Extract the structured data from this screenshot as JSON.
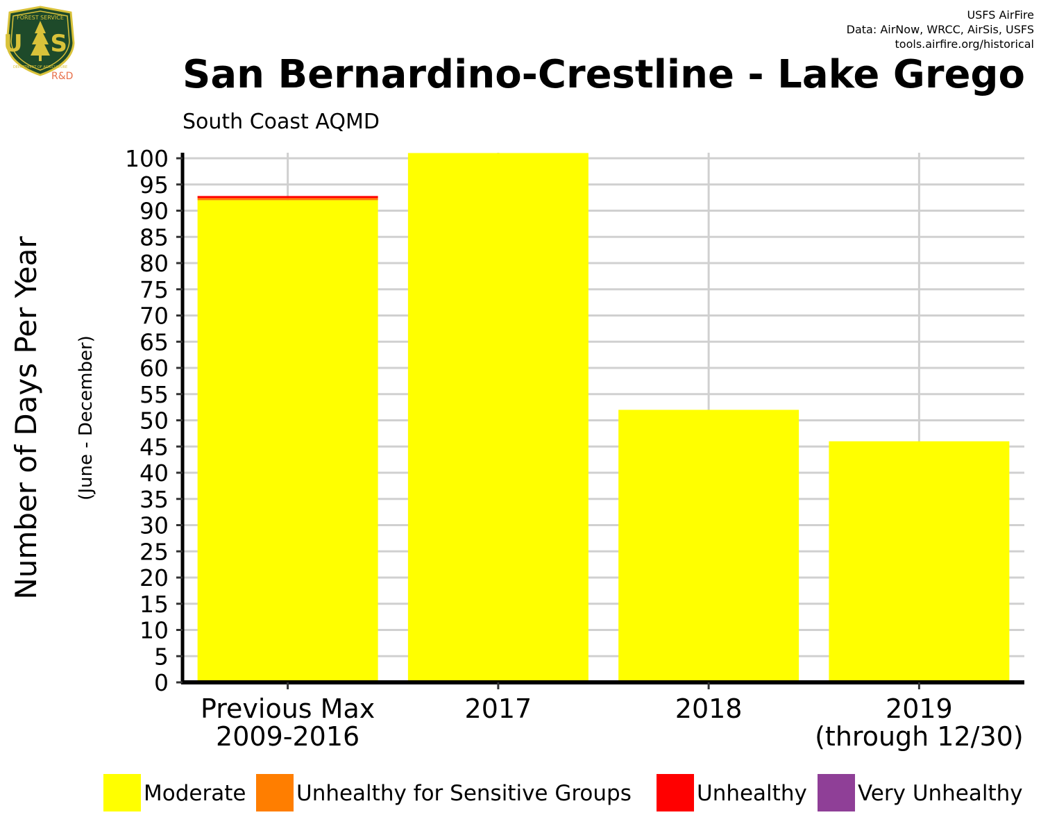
{
  "header": {
    "credit_lines": [
      "USFS AirFire",
      "Data: AirNow, WRCC, AirSis, USFS",
      "tools.airfire.org/historical"
    ],
    "logo": {
      "top_text": "FOREST SERVICE",
      "main_text": "U S",
      "bottom_text": "DEPARTMENT OF AGRICULTURE",
      "rd_text": "R&D"
    }
  },
  "chart_data": {
    "type": "bar",
    "stacked": true,
    "title": "San Bernardino-Crestline - Lake Grego",
    "subtitle": "South Coast AQMD",
    "ylabel": "Number of Days Per Year",
    "ylabel_sub": "(June - December)",
    "xlabel": "",
    "ylim": [
      0,
      100
    ],
    "yticks": [
      0,
      5,
      10,
      15,
      20,
      25,
      30,
      35,
      40,
      45,
      50,
      55,
      60,
      65,
      70,
      75,
      80,
      85,
      90,
      95,
      100
    ],
    "categories": [
      [
        "Previous Max",
        "2009-2016"
      ],
      [
        "2017"
      ],
      [
        "2018"
      ],
      [
        "2019",
        "(through 12/30)"
      ]
    ],
    "grid": true,
    "legend_position": "bottom",
    "series": [
      {
        "name": "Moderate",
        "color": "#ffff00",
        "values": [
          92,
          101,
          52,
          46
        ]
      },
      {
        "name": "Unhealthy for Sensitive Groups",
        "color": "#ff7e00",
        "values": [
          0.4,
          0,
          0,
          0
        ]
      },
      {
        "name": "Unhealthy",
        "color": "#ff0000",
        "values": [
          0.4,
          0,
          0,
          0
        ]
      },
      {
        "name": "Very Unhealthy",
        "color": "#8f3f97",
        "values": [
          0,
          0,
          0,
          0
        ]
      }
    ]
  }
}
